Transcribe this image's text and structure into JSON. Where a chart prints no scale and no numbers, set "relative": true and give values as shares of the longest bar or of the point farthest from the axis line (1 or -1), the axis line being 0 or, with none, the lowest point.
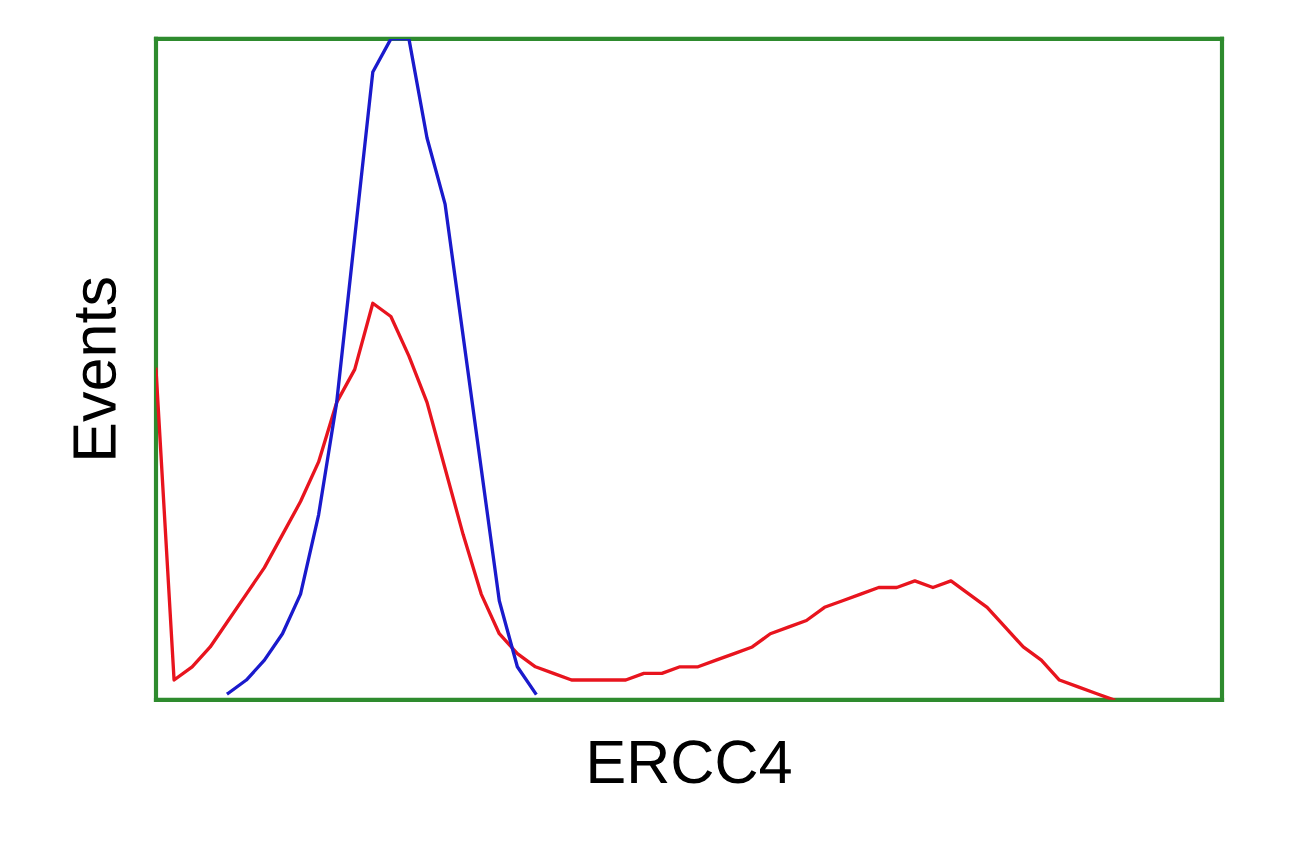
{
  "chart_data": {
    "type": "line",
    "relative": true,
    "xlabel": "ERCC4",
    "ylabel": "Events",
    "legend": false,
    "marker": "none",
    "line_style": "solid",
    "categories": [
      null,
      null,
      null,
      null,
      null,
      null,
      null,
      null,
      null,
      null,
      null,
      null,
      null,
      null,
      null,
      null,
      null,
      null,
      null,
      null,
      null,
      null,
      null,
      null,
      null,
      null,
      null,
      null,
      null,
      null,
      null,
      null,
      null,
      null,
      null,
      null,
      null,
      null,
      null,
      null,
      null,
      null,
      null,
      null,
      null,
      null,
      null,
      null,
      null,
      null,
      null,
      null,
      null,
      null,
      null,
      null,
      null,
      null,
      null,
      null
    ],
    "series": [
      {
        "color": "#e8141e",
        "values": [
          0.5,
          0.03,
          0.05,
          0.08,
          0.12,
          0.16,
          0.2,
          0.25,
          0.3,
          0.36,
          0.45,
          0.5,
          0.6,
          0.58,
          0.52,
          0.45,
          0.35,
          0.25,
          0.16,
          0.1,
          0.07,
          0.05,
          0.04,
          0.03,
          0.03,
          0.03,
          0.03,
          0.04,
          0.04,
          0.05,
          0.05,
          0.06,
          0.07,
          0.08,
          0.1,
          0.11,
          0.12,
          0.14,
          0.15,
          0.16,
          0.17,
          0.17,
          0.18,
          0.17,
          0.18,
          0.16,
          0.14,
          0.11,
          0.08,
          0.06,
          0.03,
          0.02,
          0.01,
          0,
          null,
          null,
          null,
          null,
          null,
          null
        ]
      },
      {
        "color": "#1a1acc",
        "values": [
          null,
          null,
          null,
          null,
          0.01,
          0.03,
          0.06,
          0.1,
          0.16,
          0.28,
          0.45,
          0.7,
          0.95,
          1,
          1,
          0.85,
          0.75,
          0.55,
          0.35,
          0.15,
          0.05,
          0.01,
          null,
          null,
          null,
          null,
          null,
          null,
          null,
          null,
          null,
          null,
          null,
          null,
          null,
          null,
          null,
          null,
          null,
          null,
          null,
          null,
          null,
          null,
          null,
          null,
          null,
          null,
          null,
          null,
          null,
          null,
          null,
          null,
          null,
          null,
          null,
          null,
          null,
          null
        ]
      }
    ]
  }
}
